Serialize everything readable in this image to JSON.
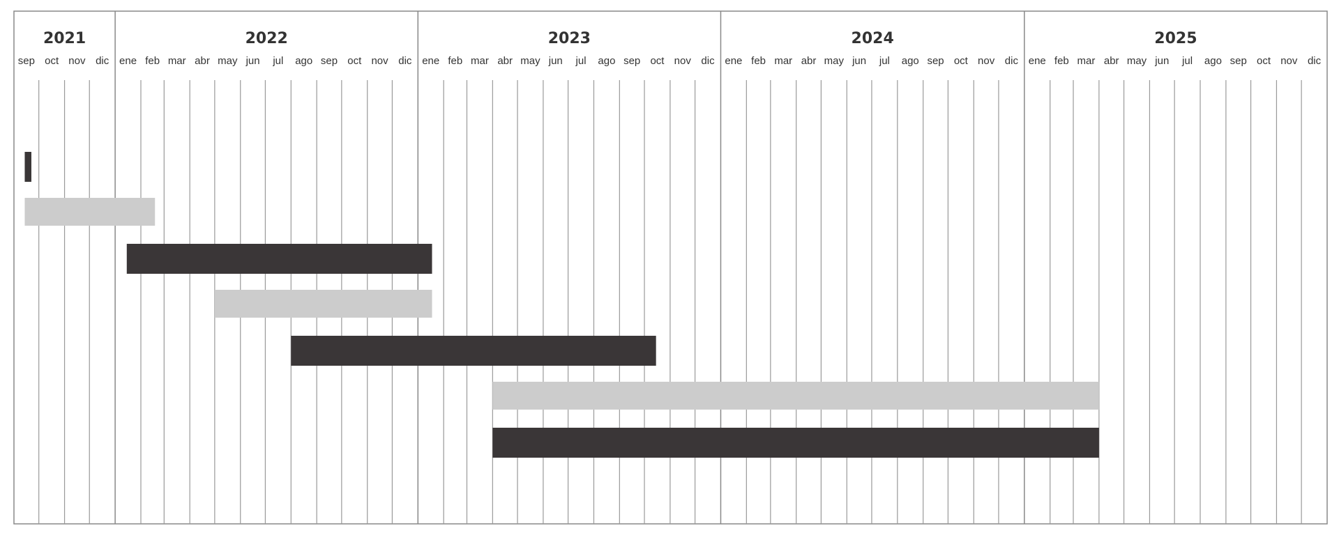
{
  "chart_data": {
    "type": "gantt",
    "years": [
      {
        "label": "2021",
        "months": [
          "sep",
          "oct",
          "nov",
          "dic"
        ]
      },
      {
        "label": "2022",
        "months": [
          "ene",
          "feb",
          "mar",
          "abr",
          "may",
          "jun",
          "jul",
          "ago",
          "sep",
          "oct",
          "nov",
          "dic"
        ]
      },
      {
        "label": "2023",
        "months": [
          "ene",
          "feb",
          "mar",
          "abr",
          "may",
          "jun",
          "jul",
          "ago",
          "sep",
          "oct",
          "nov",
          "dic"
        ]
      },
      {
        "label": "2024",
        "months": [
          "ene",
          "feb",
          "mar",
          "abr",
          "may",
          "jun",
          "jul",
          "ago",
          "sep",
          "oct",
          "nov",
          "dic"
        ]
      },
      {
        "label": "2025",
        "months": [
          "ene",
          "feb",
          "mar",
          "abr",
          "may",
          "jun",
          "jul",
          "ago",
          "sep",
          "oct",
          "nov",
          "dic"
        ]
      }
    ],
    "tasks": [
      {
        "start": "2021-09-14",
        "end": "2021-09-22",
        "color": "#3a3637"
      },
      {
        "start": "2021-09-14",
        "end": "2022-02-18",
        "color": "#cccccc"
      },
      {
        "start": "2022-01-15",
        "end": "2023-01-18",
        "color": "#3a3637"
      },
      {
        "start": "2022-05-01",
        "end": "2023-01-18",
        "color": "#cccccc"
      },
      {
        "start": "2022-08-01",
        "end": "2023-10-15",
        "color": "#3a3637"
      },
      {
        "start": "2023-04-01",
        "end": "2025-04-01",
        "color": "#cccccc"
      },
      {
        "start": "2023-04-01",
        "end": "2025-04-01",
        "color": "#3a3637"
      }
    ]
  }
}
